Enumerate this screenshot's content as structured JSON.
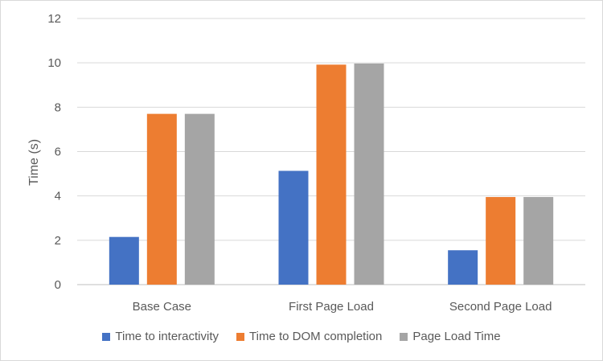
{
  "chart_data": {
    "type": "bar",
    "title": "",
    "xlabel": "",
    "ylabel": "Time (s)",
    "ylim": [
      0,
      12
    ],
    "yticks": [
      "0",
      "2",
      "4",
      "6",
      "8",
      "10",
      "12"
    ],
    "grid": true,
    "legend_position": "bottom",
    "categories": [
      "Base Case",
      "First Page Load",
      "Second Page Load"
    ],
    "series": [
      {
        "name": "Time to interactivity",
        "color": "#4472C4",
        "values": [
          2.15,
          5.13,
          1.55
        ]
      },
      {
        "name": "Time to DOM completion",
        "color": "#ED7D31",
        "values": [
          7.7,
          9.92,
          3.95
        ]
      },
      {
        "name": "Page Load Time",
        "color": "#A5A5A5",
        "values": [
          7.7,
          9.97,
          3.95
        ]
      }
    ]
  }
}
